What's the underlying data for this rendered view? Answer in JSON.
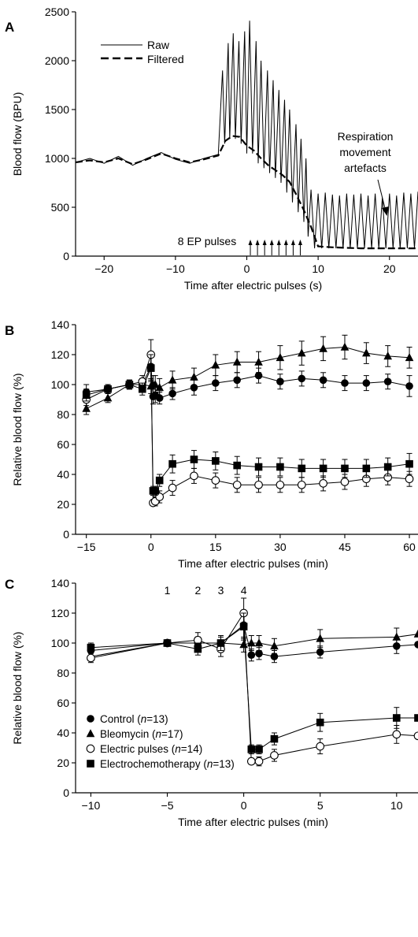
{
  "chart_data": [
    {
      "panel": "A",
      "type": "line",
      "xlabel": "Time after electric pulses (s)",
      "ylabel": "Blood flow (BPU)",
      "xlim": [
        -24,
        24
      ],
      "ylim": [
        0,
        2500
      ],
      "xticks": [
        -20,
        -10,
        0,
        10,
        20
      ],
      "yticks": [
        0,
        500,
        1000,
        1500,
        2000,
        2500
      ],
      "legend": [
        {
          "name": "Raw",
          "style": "solid"
        },
        {
          "name": "Filtered",
          "style": "dashed"
        }
      ],
      "legend_position": "top-left",
      "annotations": {
        "artefacts": [
          "Respiration",
          "movement",
          "artefacts"
        ],
        "pulses": "8 EP pulses"
      },
      "pulse_times": [
        0.5,
        1.5,
        2.5,
        3.5,
        4.5,
        5.5,
        6.5,
        7.5
      ],
      "series": [
        {
          "name": "Filtered",
          "x": [
            -24,
            -22,
            -20,
            -18,
            -16,
            -14,
            -12,
            -10,
            -8,
            -6,
            -4,
            -3,
            -2,
            -1,
            0,
            1,
            2,
            3,
            4,
            5,
            6,
            7,
            8,
            9,
            10,
            12,
            14,
            16,
            18,
            20,
            22,
            24
          ],
          "y": [
            960,
            980,
            960,
            1000,
            940,
            990,
            1050,
            1000,
            960,
            990,
            1030,
            1180,
            1230,
            1220,
            1130,
            1080,
            1000,
            930,
            880,
            830,
            760,
            620,
            470,
            300,
            100,
            90,
            85,
            80,
            80,
            80,
            80,
            80
          ]
        },
        {
          "name": "Raw",
          "x": [
            -24,
            -22,
            -20,
            -18,
            -16,
            -14,
            -12,
            -10,
            -8,
            -6,
            -4,
            -3.4,
            -3.1,
            -2.6,
            -2.4,
            -1.9,
            -1.6,
            -1.1,
            -0.8,
            -0.3,
            0,
            0.4,
            0.8,
            1.3,
            1.6,
            2.0,
            2.4,
            2.9,
            3.2,
            3.7,
            4.0,
            4.5,
            4.8,
            5.3,
            5.6,
            6.0,
            6.4,
            6.9,
            7.2,
            7.6,
            8.0,
            8.3,
            8.6,
            9.0,
            9.5,
            10.0,
            10.5,
            11.0,
            11.5,
            12.0,
            12.5,
            13.0,
            13.5,
            14.0,
            14.5,
            15.0,
            15.5,
            16.0,
            16.5,
            17.0,
            17.5,
            18.0,
            18.5,
            19.0,
            19.5,
            20.0,
            20.5,
            21.0,
            21.5,
            22.0,
            22.5,
            23.0,
            23.5,
            24.0
          ],
          "y": [
            960,
            1000,
            950,
            1020,
            930,
            1000,
            1060,
            990,
            950,
            1000,
            1040,
            1900,
            1150,
            2180,
            1200,
            2280,
            1200,
            2200,
            1150,
            2300,
            1050,
            2410,
            1050,
            2200,
            950,
            2000,
            900,
            1900,
            850,
            1800,
            800,
            1700,
            750,
            1600,
            650,
            1500,
            550,
            1350,
            450,
            1200,
            350,
            1000,
            200,
            680,
            80,
            640,
            80,
            650,
            80,
            630,
            80,
            620,
            80,
            640,
            80,
            630,
            80,
            640,
            80,
            620,
            80,
            640,
            80,
            600,
            80,
            640,
            80,
            620,
            80,
            650,
            80,
            640,
            80,
            660
          ]
        }
      ]
    },
    {
      "panel": "B",
      "type": "line",
      "xlabel": "Time after electric pulses (min)",
      "ylabel": "Relative blood flow (%)",
      "xlim": [
        -17.5,
        62
      ],
      "ylim": [
        0,
        140
      ],
      "xticks": [
        -15,
        0,
        15,
        30,
        45,
        60
      ],
      "yticks": [
        0,
        20,
        40,
        60,
        80,
        100,
        120,
        140
      ],
      "series": [
        {
          "name": "Control",
          "marker": "circle-filled",
          "x": [
            -15,
            -10,
            -5,
            -2,
            0,
            0.5,
            1,
            2,
            5,
            10,
            15,
            20,
            25,
            30,
            35,
            40,
            45,
            50,
            55,
            60
          ],
          "y": [
            95,
            97,
            100,
            100,
            112,
            92,
            93,
            91,
            94,
            98,
            101,
            103,
            106,
            102,
            104,
            103,
            101,
            101,
            102,
            99
          ],
          "err": [
            5,
            3,
            3,
            4,
            9,
            5,
            5,
            4,
            4,
            5,
            5,
            5,
            5,
            5,
            5,
            5,
            5,
            5,
            5,
            7
          ]
        },
        {
          "name": "Bleomycin",
          "marker": "triangle-filled",
          "x": [
            -15,
            -10,
            -5,
            -2,
            0,
            0.5,
            1,
            2,
            5,
            10,
            15,
            20,
            25,
            30,
            35,
            40,
            45,
            50,
            55,
            60
          ],
          "y": [
            84,
            91,
            100,
            100,
            99,
            100,
            100,
            98,
            103,
            105,
            113,
            115,
            115,
            118,
            121,
            124,
            125,
            121,
            119,
            118
          ],
          "err": [
            4,
            3,
            3,
            4,
            5,
            6,
            6,
            6,
            6,
            6,
            7,
            7,
            7,
            8,
            8,
            8,
            8,
            7,
            7,
            7
          ]
        },
        {
          "name": "Electric pulses",
          "marker": "circle-open",
          "x": [
            -15,
            -10,
            -5,
            -2,
            0,
            0.5,
            1,
            2,
            5,
            10,
            15,
            20,
            25,
            30,
            35,
            40,
            45,
            50,
            55,
            60
          ],
          "y": [
            90,
            97,
            100,
            102,
            120,
            21,
            22,
            25,
            31,
            39,
            36,
            33,
            33,
            33,
            33,
            34,
            35,
            37,
            38,
            37
          ],
          "err": [
            4,
            3,
            3,
            4,
            10,
            2,
            3,
            4,
            5,
            5,
            5,
            5,
            5,
            5,
            5,
            5,
            5,
            5,
            5,
            5
          ]
        },
        {
          "name": "Electrochemotherapy",
          "marker": "square-filled",
          "x": [
            -15,
            -10,
            -5,
            -2,
            0,
            0.5,
            1,
            2,
            5,
            10,
            15,
            20,
            25,
            30,
            35,
            40,
            45,
            50,
            55,
            60
          ],
          "y": [
            93,
            97,
            100,
            97,
            111,
            29,
            29,
            36,
            47,
            50,
            49,
            46,
            45,
            45,
            44,
            44,
            44,
            44,
            45,
            47
          ],
          "err": [
            4,
            3,
            3,
            4,
            9,
            3,
            3,
            4,
            6,
            6,
            6,
            6,
            6,
            6,
            6,
            6,
            6,
            6,
            6,
            7
          ]
        }
      ]
    },
    {
      "panel": "C",
      "type": "line",
      "xlabel": "Time after electric pulses (min)",
      "ylabel": "Relative blood flow (%)",
      "xlim": [
        -11,
        11.4
      ],
      "ylim": [
        0,
        140
      ],
      "xticks": [
        -10,
        -5,
        0,
        5,
        10
      ],
      "yticks": [
        0,
        20,
        40,
        60,
        80,
        100,
        120,
        140
      ],
      "markers_top": [
        {
          "label": "1",
          "x": -5
        },
        {
          "label": "2",
          "x": -3
        },
        {
          "label": "3",
          "x": -1.5
        },
        {
          "label": "4",
          "x": 0
        }
      ],
      "legend_position": "bottom-left",
      "legend": [
        {
          "marker": "circle-filled",
          "name": "Control",
          "n": "13"
        },
        {
          "marker": "triangle-filled",
          "name": "Bleomycin",
          "n": "17"
        },
        {
          "marker": "circle-open",
          "name": "Electric pulses",
          "n": "14"
        },
        {
          "marker": "square-filled",
          "name": "Electrochemotherapy",
          "n": "13"
        }
      ],
      "series": [
        {
          "name": "Control",
          "marker": "circle-filled",
          "x": [
            -10,
            -5,
            -3,
            -1.5,
            0,
            0.5,
            1,
            2,
            5,
            10,
            11.4
          ],
          "y": [
            95,
            100,
            100,
            100,
            112,
            92,
            93,
            91,
            94,
            98,
            99
          ],
          "err": [
            4,
            2,
            4,
            5,
            9,
            4,
            4,
            4,
            4,
            5,
            0
          ]
        },
        {
          "name": "Bleomycin",
          "marker": "triangle-filled",
          "x": [
            -10,
            -5,
            -3,
            -1.5,
            0,
            0.5,
            1,
            2,
            5,
            10,
            11.4
          ],
          "y": [
            91,
            100,
            100,
            100,
            99,
            100,
            100,
            98,
            103,
            104,
            106
          ],
          "err": [
            3,
            2,
            4,
            4,
            5,
            5,
            5,
            5,
            6,
            6,
            0
          ]
        },
        {
          "name": "Electric pulses",
          "marker": "circle-open",
          "x": [
            -10,
            -5,
            -3,
            -1.5,
            0,
            0.5,
            1,
            2,
            5,
            10,
            11.4
          ],
          "y": [
            90,
            100,
            102,
            96,
            120,
            21,
            21,
            25,
            31,
            39,
            38
          ],
          "err": [
            3,
            2,
            5,
            5,
            10,
            2,
            3,
            4,
            5,
            6,
            0
          ]
        },
        {
          "name": "Electrochemotherapy",
          "marker": "square-filled",
          "x": [
            -10,
            -5,
            -3,
            -1.5,
            0,
            0.5,
            1,
            2,
            5,
            10,
            11.4
          ],
          "y": [
            97,
            100,
            96,
            100,
            111,
            29,
            29,
            36,
            47,
            50,
            50
          ],
          "err": [
            3,
            2,
            4,
            5,
            9,
            3,
            3,
            4,
            6,
            7,
            0
          ]
        }
      ]
    }
  ]
}
